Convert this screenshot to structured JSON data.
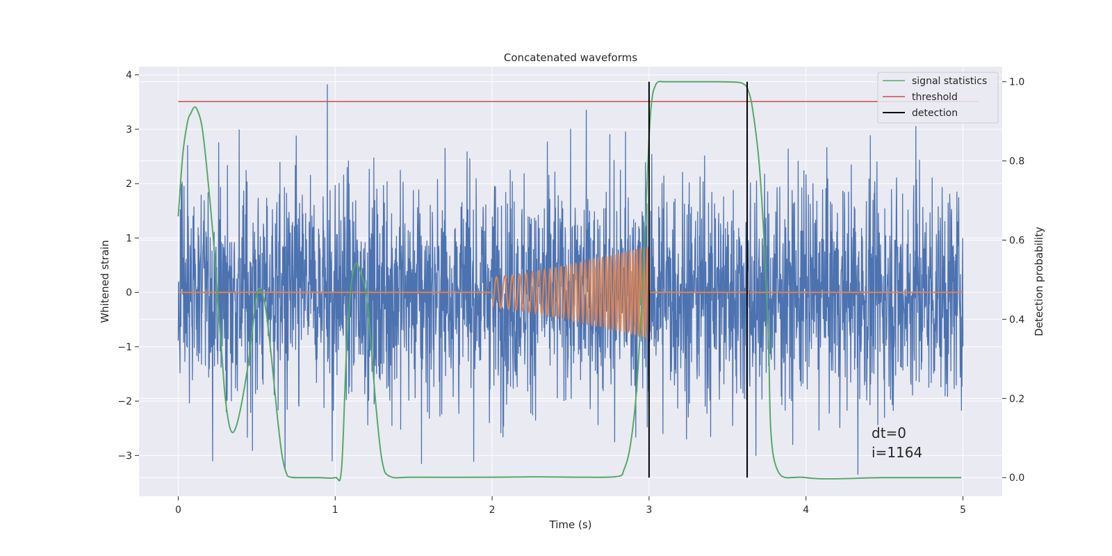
{
  "chart_data": {
    "type": "line",
    "title": "Concatenated waveforms",
    "xlabel": "Time (s)",
    "ylabel": "Whitened strain",
    "y2label": "Detection probability",
    "xlim": [
      -0.25,
      5.25
    ],
    "ylim": [
      -3.75,
      4.15
    ],
    "y2lim": [
      -0.047,
      1.038
    ],
    "xticks": [
      0,
      1,
      2,
      3,
      4,
      5
    ],
    "xtick_labels": [
      "0",
      "1",
      "2",
      "3",
      "4",
      "5"
    ],
    "yticks": [
      -3,
      -2,
      -1,
      0,
      1,
      2,
      3,
      4
    ],
    "ytick_labels": [
      "−3",
      "−2",
      "−1",
      "0",
      "1",
      "2",
      "3",
      "4"
    ],
    "y2ticks": [
      0.0,
      0.2,
      0.4,
      0.6,
      0.8,
      1.0
    ],
    "y2tick_labels": [
      "0.0",
      "0.2",
      "0.4",
      "0.6",
      "0.8",
      "1.0"
    ],
    "grid": true,
    "legend_position": "top-right",
    "colors": {
      "noise": "#4c72b0",
      "template": "#dd8452",
      "signal_statistics": "#55a868",
      "threshold": "#c44e52",
      "detection": "#000000",
      "background": "#eaeaf2",
      "grid": "#ffffff"
    },
    "series": [
      {
        "name": "",
        "axis": "left",
        "kind": "whitened-strain-noise",
        "x_range": [
          0,
          5
        ],
        "typical_amplitude": 1.0,
        "spikes": [
          {
            "x": 0.95,
            "y": 3.82
          },
          {
            "x": 0.22,
            "y": 3.35
          },
          {
            "x": 2.6,
            "y": 3.35
          },
          {
            "x": 0.06,
            "y": 2.7
          },
          {
            "x": 0.98,
            "y": 2.8
          },
          {
            "x": 1.7,
            "y": 2.65
          },
          {
            "x": 2.85,
            "y": 2.95
          },
          {
            "x": 4.7,
            "y": 3.05
          },
          {
            "x": 2.75,
            "y": 2.9
          },
          {
            "x": 0.68,
            "y": -3.25
          },
          {
            "x": 0.22,
            "y": -3.1
          },
          {
            "x": 0.98,
            "y": -3.1
          },
          {
            "x": 1.55,
            "y": -3.15
          },
          {
            "x": 2.78,
            "y": -2.75
          },
          {
            "x": 4.33,
            "y": -3.35
          },
          {
            "x": 3.68,
            "y": -3.0
          }
        ]
      },
      {
        "name": "",
        "axis": "left",
        "kind": "chirp-template",
        "flat_ranges": [
          [
            0,
            2
          ],
          [
            3,
            5
          ]
        ],
        "chirp": {
          "t_start": 2.0,
          "t_end": 3.0,
          "amp_start": 0.28,
          "amp_end": 0.85,
          "cycles": 32
        }
      },
      {
        "name": "signal statistics",
        "axis": "right",
        "x": [
          0.0,
          0.03,
          0.06,
          0.08,
          0.1,
          0.12,
          0.15,
          0.18,
          0.22,
          0.25,
          0.28,
          0.3,
          0.33,
          0.36,
          0.4,
          0.45,
          0.5,
          0.53,
          0.56,
          0.6,
          0.63,
          0.66,
          0.69,
          0.72,
          0.8,
          0.9,
          1.0,
          1.04,
          1.07,
          1.1,
          1.13,
          1.16,
          1.2,
          1.23,
          1.26,
          1.3,
          1.35,
          1.5,
          2.0,
          2.3,
          2.6,
          2.8,
          2.84,
          2.88,
          2.92,
          2.96,
          3.0,
          3.02,
          3.04,
          3.06,
          3.1,
          3.2,
          3.4,
          3.55,
          3.6,
          3.63,
          3.66,
          3.7,
          3.73,
          3.76,
          3.8,
          4.0,
          4.5,
          4.99
        ],
        "values": [
          0.66,
          0.82,
          0.9,
          0.92,
          0.935,
          0.93,
          0.89,
          0.79,
          0.62,
          0.46,
          0.3,
          0.2,
          0.125,
          0.12,
          0.18,
          0.3,
          0.46,
          0.47,
          0.42,
          0.28,
          0.16,
          0.06,
          0.01,
          0.001,
          0.0,
          0.0,
          0.0,
          0.02,
          0.3,
          0.48,
          0.54,
          0.52,
          0.46,
          0.33,
          0.18,
          0.04,
          0.003,
          0.001,
          0.001,
          0.002,
          0.001,
          0.003,
          0.02,
          0.08,
          0.22,
          0.5,
          0.86,
          0.96,
          0.99,
          1.0,
          1.0,
          1.0,
          1.0,
          0.999,
          0.995,
          0.98,
          0.93,
          0.8,
          0.62,
          0.36,
          0.04,
          0.0,
          0.0,
          0.0
        ]
      },
      {
        "name": "threshold",
        "axis": "right",
        "x": [
          0,
          5.1
        ],
        "values": [
          0.95,
          0.95
        ]
      },
      {
        "name": "detection",
        "axis": "right",
        "vlines": [
          3.0,
          3.625
        ],
        "range": [
          0.0,
          1.0
        ]
      }
    ],
    "annotations": [
      "dt=0",
      "i=1164"
    ]
  }
}
